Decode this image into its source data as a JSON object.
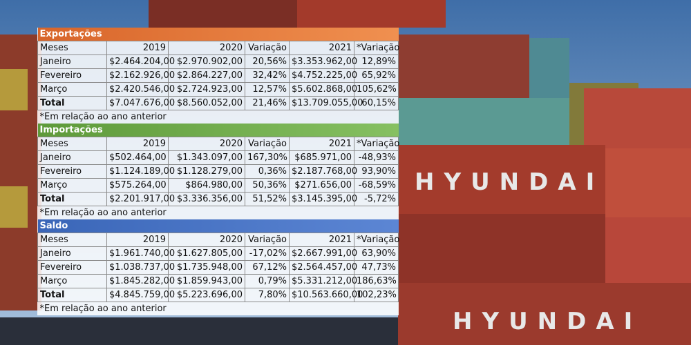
{
  "background": {
    "labels": [
      "HYUNDAI",
      "HYUNDAI"
    ]
  },
  "sections": [
    {
      "title": "Exportações",
      "header": [
        "Meses",
        "2019",
        "2020",
        "Variação",
        "2021",
        "*Variação"
      ],
      "rows": [
        [
          "Janeiro",
          "$2.464.204,00",
          "$2.970.902,00",
          "20,56%",
          "$3.353.962,00",
          "12,89%"
        ],
        [
          "Fevereiro",
          "$2.162.926,00",
          "$2.864.227,00",
          "32,42%",
          "$4.752.225,00",
          "65,92%"
        ],
        [
          "Março",
          "$2.420.546,00",
          "$2.724.923,00",
          "12,57%",
          "$5.602.868,00",
          "105,62%"
        ],
        [
          "Total",
          "$7.047.676,00",
          "$8.560.052,00",
          "21,46%",
          "$13.709.055,00",
          "60,15%"
        ]
      ],
      "note": "*Em relação ao ano anterior"
    },
    {
      "title": "Importações",
      "header": [
        "Meses",
        "2019",
        "2020",
        "Variação",
        "2021",
        "*Variação"
      ],
      "rows": [
        [
          "Janeiro",
          "$502.464,00",
          "$1.343.097,00",
          "167,30%",
          "$685.971,00",
          "-48,93%"
        ],
        [
          "Fevereiro",
          "$1.124.189,00",
          "$1.128.279,00",
          "0,36%",
          "$2.187.768,00",
          "93,90%"
        ],
        [
          "Março",
          "$575.264,00",
          "$864.980,00",
          "50,36%",
          "$271.656,00",
          "-68,59%"
        ],
        [
          "Total",
          "$2.201.917,00",
          "$3.336.356,00",
          "51,52%",
          "$3.145.395,00",
          "-5,72%"
        ]
      ],
      "note": "*Em relação ao ano anterior"
    },
    {
      "title": "Saldo",
      "header": [
        "Meses",
        "2019",
        "2020",
        "Variação",
        "2021",
        "*Variação"
      ],
      "rows": [
        [
          "Janeiro",
          "$1.961.740,00",
          "$1.627.805,00",
          "-17,02%",
          "$2.667.991,00",
          "63,90%"
        ],
        [
          "Fevereiro",
          "$1.038.737,00",
          "$1.735.948,00",
          "67,12%",
          "$2.564.457,00",
          "47,73%"
        ],
        [
          "Março",
          "$1.845.282,00",
          "$1.859.943,00",
          "0,79%",
          "$5.331.212,00",
          "186,63%"
        ],
        [
          "Total",
          "$4.845.759,00",
          "$5.223.696,00",
          "7,80%",
          "$10.563.660,00",
          "102,23%"
        ]
      ],
      "note": "*Em relação ao ano anterior"
    }
  ]
}
